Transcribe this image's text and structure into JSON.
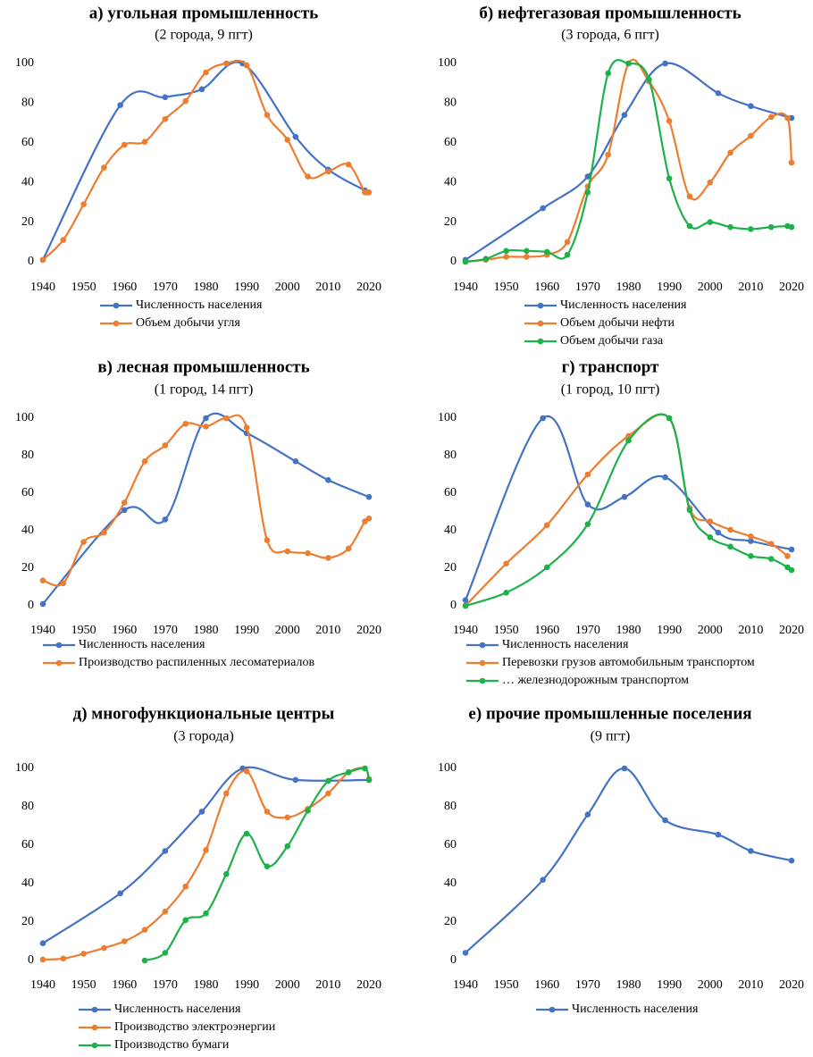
{
  "chart_data": [
    {
      "type": "line",
      "title": "а) угольная промышленность",
      "subtitle": "(2 города, 9 пгт)",
      "xlim": [
        1940,
        2020
      ],
      "xticks": [
        1940,
        1950,
        1960,
        1970,
        1980,
        1990,
        2000,
        2010,
        2020
      ],
      "ylim": [
        0,
        100
      ],
      "yticks": [
        0,
        20,
        40,
        60,
        80,
        100
      ],
      "series": [
        {
          "name": "Численность населения",
          "color": "#4472c4",
          "x": [
            1940,
            1959,
            1970,
            1979,
            1989,
            2002,
            2010,
            2019
          ],
          "values": [
            1,
            79,
            83,
            87,
            100,
            63,
            46.5,
            36
          ]
        },
        {
          "name": "Объем добычи угля",
          "color": "#ed7d31",
          "x": [
            1940,
            1945,
            1950,
            1955,
            1960,
            1965,
            1970,
            1975,
            1980,
            1985,
            1990,
            1995,
            2000,
            2005,
            2010,
            2015,
            2019,
            2020
          ],
          "values": [
            1,
            11,
            29,
            47.5,
            59,
            60.5,
            72,
            81,
            95.5,
            100,
            99,
            74,
            61.5,
            43,
            45.5,
            49,
            35,
            35
          ]
        }
      ]
    },
    {
      "type": "line",
      "title": "б) нефтегазовая промышленность",
      "subtitle": "(3 города, 6 пгт)",
      "xlim": [
        1940,
        2020
      ],
      "xticks": [
        1940,
        1950,
        1960,
        1970,
        1980,
        1990,
        2000,
        2010,
        2020
      ],
      "ylim": [
        0,
        100
      ],
      "yticks": [
        0,
        20,
        40,
        60,
        80,
        100
      ],
      "series": [
        {
          "name": "Численность населения",
          "color": "#4472c4",
          "x": [
            1940,
            1959,
            1970,
            1979,
            1989,
            2002,
            2010,
            2020
          ],
          "values": [
            1,
            27,
            43,
            74,
            100,
            85,
            78.5,
            72.5
          ]
        },
        {
          "name": "Объем добычи нефти",
          "color": "#ed7d31",
          "x": [
            1940,
            1945,
            1950,
            1955,
            1960,
            1965,
            1970,
            1975,
            1980,
            1985,
            1990,
            1995,
            2000,
            2005,
            2010,
            2015,
            2019,
            2020
          ],
          "values": [
            0,
            1,
            2.5,
            2.5,
            3.5,
            10,
            38,
            54,
            100,
            91,
            71,
            33,
            40,
            55,
            63.5,
            73,
            72.5,
            50
          ]
        },
        {
          "name": "Объем добычи газа",
          "color": "#1db14a",
          "x": [
            1940,
            1945,
            1950,
            1955,
            1960,
            1965,
            1970,
            1975,
            1980,
            1985,
            1990,
            1995,
            2000,
            2005,
            2010,
            2015,
            2019,
            2020
          ],
          "values": [
            0,
            1.5,
            5.5,
            5.5,
            5,
            3.5,
            35,
            95,
            100,
            92,
            42,
            18,
            20,
            17.5,
            16.5,
            17.5,
            18,
            17.5
          ]
        }
      ]
    },
    {
      "type": "line",
      "title": "в) лесная промышленность",
      "subtitle": "(1 город, 14 пгт)",
      "xlim": [
        1940,
        2020
      ],
      "xticks": [
        1940,
        1950,
        1960,
        1970,
        1980,
        1990,
        2000,
        2010,
        2020
      ],
      "ylim": [
        0,
        100
      ],
      "yticks": [
        0,
        20,
        40,
        60,
        80,
        100
      ],
      "series": [
        {
          "name": "Численность населения",
          "color": "#4472c4",
          "x": [
            1940,
            1960,
            1970,
            1980,
            1990,
            2002,
            2010,
            2020
          ],
          "values": [
            1,
            51,
            46,
            100,
            92,
            77,
            67,
            58
          ]
        },
        {
          "name": "Производство распиленных лесоматериалов",
          "color": "#ed7d31",
          "x": [
            1940,
            1945,
            1950,
            1955,
            1960,
            1965,
            1970,
            1975,
            1980,
            1985,
            1990,
            1995,
            2000,
            2005,
            2010,
            2015,
            2019,
            2020
          ],
          "values": [
            13.5,
            12,
            34,
            39,
            55,
            77,
            85.5,
            97,
            95.5,
            100,
            95,
            35,
            29,
            28,
            25.5,
            30.5,
            45,
            46.5
          ]
        }
      ]
    },
    {
      "type": "line",
      "title": "г) транспорт",
      "subtitle": "(1 город, 10 пгт)",
      "xlim": [
        1940,
        2020
      ],
      "xticks": [
        1940,
        1950,
        1960,
        1970,
        1980,
        1990,
        2000,
        2010,
        2020
      ],
      "ylim": [
        0,
        100
      ],
      "yticks": [
        0,
        20,
        40,
        60,
        80,
        100
      ],
      "series": [
        {
          "name": "Численность населения",
          "color": "#4472c4",
          "x": [
            1940,
            1959,
            1970,
            1979,
            1989,
            2002,
            2010,
            2020
          ],
          "values": [
            3,
            100,
            54,
            58,
            68.5,
            39,
            34.5,
            30
          ]
        },
        {
          "name": "Перевозки грузов автомобильным транспортом",
          "color": "#ed7d31",
          "x": [
            1940,
            1950,
            1960,
            1970,
            1980,
            1990,
            1995,
            2000,
            2005,
            2010,
            2015,
            2019
          ],
          "values": [
            0,
            22.5,
            43,
            70,
            90.5,
            100,
            52,
            45,
            40.5,
            37,
            33,
            26.5
          ]
        },
        {
          "name": "… железнодорожным транспортом",
          "color": "#1db14a",
          "x": [
            1940,
            1950,
            1960,
            1970,
            1980,
            1990,
            1995,
            2000,
            2005,
            2010,
            2015,
            2019,
            2020
          ],
          "values": [
            0,
            7,
            20.5,
            43.5,
            88,
            100,
            51,
            36.5,
            31.5,
            26.5,
            25,
            20.5,
            19
          ]
        }
      ]
    },
    {
      "type": "line",
      "title": "д) многофункциональные центры",
      "subtitle": "(3 города)",
      "xlim": [
        1940,
        2020
      ],
      "xticks": [
        1940,
        1950,
        1960,
        1970,
        1980,
        1990,
        2000,
        2010,
        2020
      ],
      "ylim": [
        0,
        100
      ],
      "yticks": [
        0,
        20,
        40,
        60,
        80,
        100
      ],
      "series": [
        {
          "name": "Численность населения",
          "color": "#4472c4",
          "x": [
            1940,
            1959,
            1970,
            1979,
            1989,
            2002,
            2020
          ],
          "values": [
            9,
            35,
            57,
            77.5,
            100,
            94,
            94
          ]
        },
        {
          "name": "Производство электроэнергии",
          "color": "#ed7d31",
          "x": [
            1940,
            1945,
            1950,
            1955,
            1960,
            1965,
            1970,
            1975,
            1980,
            1985,
            1990,
            1995,
            2000,
            2005,
            2010,
            2015,
            2019,
            2020
          ],
          "values": [
            0.5,
            1,
            3.5,
            6.5,
            10,
            16,
            25.5,
            38.5,
            57.5,
            87,
            98.5,
            77.5,
            74.5,
            79,
            87,
            98,
            100,
            94.5
          ]
        },
        {
          "name": "Производство бумаги",
          "color": "#1db14a",
          "x": [
            1965,
            1970,
            1975,
            1980,
            1985,
            1990,
            1995,
            2000,
            2005,
            2010,
            2015,
            2019,
            2020
          ],
          "values": [
            0,
            4,
            21,
            24.5,
            45,
            66,
            49,
            59.5,
            78,
            93.5,
            98,
            100,
            94
          ]
        }
      ]
    },
    {
      "type": "line",
      "title": "е) прочие промышленные поселения",
      "subtitle": "(9 пгт)",
      "xlim": [
        1940,
        2020
      ],
      "xticks": [
        1940,
        1950,
        1960,
        1970,
        1980,
        1990,
        2000,
        2010,
        2020
      ],
      "ylim": [
        0,
        100
      ],
      "yticks": [
        0,
        20,
        40,
        60,
        80,
        100
      ],
      "series": [
        {
          "name": "Численность населения",
          "color": "#4472c4",
          "x": [
            1940,
            1959,
            1970,
            1979,
            1989,
            2002,
            2010,
            2020
          ],
          "values": [
            4,
            42,
            76,
            100,
            73,
            65.5,
            57,
            52
          ]
        }
      ]
    }
  ]
}
